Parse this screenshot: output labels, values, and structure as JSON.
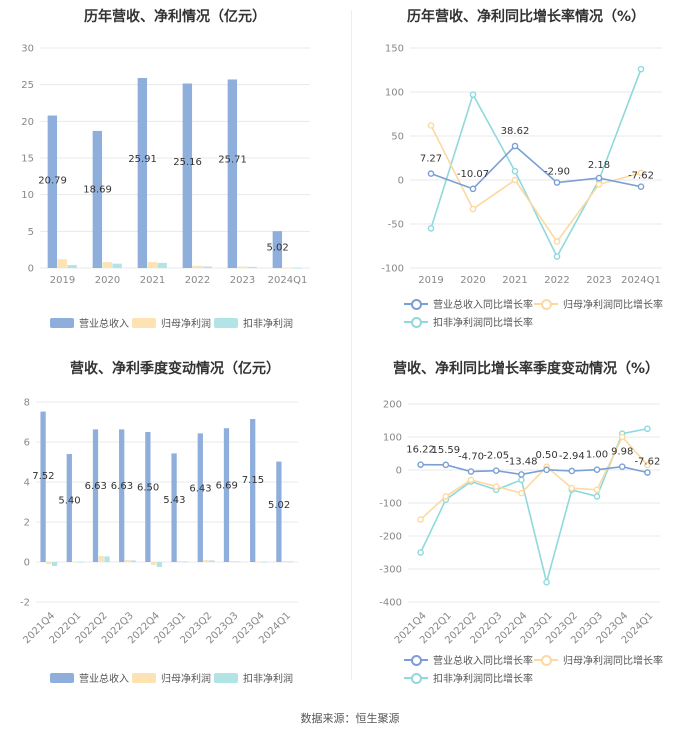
{
  "colors": {
    "revenue": "#8eaedb",
    "net_profit": "#fde2b3",
    "deducted_profit": "#b2e4e6",
    "rev_line": "#7b9fd4",
    "np_line": "#fcd9a0",
    "dp_line": "#8fd9dc",
    "grid": "#e8e8e8",
    "axis_text": "#888888"
  },
  "source_label": "数据来源：恒生聚源",
  "chart_data": [
    {
      "id": "annual-amount",
      "type": "bar",
      "title": "历年营收、净利情况（亿元）",
      "categories": [
        "2019",
        "2020",
        "2021",
        "2022",
        "2023",
        "2024Q1"
      ],
      "ylim": [
        0,
        30
      ],
      "yticks": [
        0,
        5,
        10,
        15,
        20,
        25,
        30
      ],
      "grid": true,
      "legend_position": "bottom",
      "series": [
        {
          "name": "营业总收入",
          "values": [
            20.79,
            18.69,
            25.91,
            25.16,
            25.71,
            5.02
          ],
          "labels": [
            "20.79",
            "18.69",
            "25.91",
            "25.16",
            "25.71",
            "5.02"
          ]
        },
        {
          "name": "归母净利润",
          "values": [
            1.2,
            0.8,
            0.8,
            0.3,
            0.2,
            0.05
          ]
        },
        {
          "name": "扣非净利润",
          "values": [
            0.4,
            0.6,
            0.7,
            0.2,
            0.15,
            0.03
          ]
        }
      ]
    },
    {
      "id": "annual-growth",
      "type": "line",
      "title": "历年营收、净利同比增长率情况（%）",
      "categories": [
        "2019",
        "2020",
        "2021",
        "2022",
        "2023",
        "2024Q1"
      ],
      "ylim": [
        -100,
        150
      ],
      "yticks": [
        -100,
        -50,
        0,
        50,
        100,
        150
      ],
      "grid": true,
      "legend_position": "bottom",
      "series": [
        {
          "name": "营业总收入同比增长率",
          "values": [
            7.27,
            -10.07,
            38.62,
            -2.9,
            2.18,
            -7.62
          ],
          "labels": [
            "7.27",
            "-10.07",
            "38.62",
            "-2.90",
            "2.18",
            "-7.62"
          ]
        },
        {
          "name": "归母净利润同比增长率",
          "values": [
            62,
            -33,
            0,
            -70,
            -5,
            8
          ]
        },
        {
          "name": "扣非净利润同比增长率",
          "values": [
            -55,
            97,
            10,
            -87,
            0,
            126
          ]
        }
      ]
    },
    {
      "id": "quarterly-amount",
      "type": "bar",
      "title": "营收、净利季度变动情况（亿元）",
      "categories": [
        "2021Q4",
        "2022Q1",
        "2022Q2",
        "2022Q3",
        "2022Q4",
        "2023Q1",
        "2023Q2",
        "2023Q3",
        "2023Q4",
        "2024Q1"
      ],
      "ylim": [
        -2,
        8
      ],
      "yticks": [
        -2,
        0,
        2,
        4,
        6,
        8
      ],
      "grid": true,
      "legend_position": "bottom",
      "series": [
        {
          "name": "营业总收入",
          "values": [
            7.52,
            5.4,
            6.63,
            6.63,
            6.5,
            5.43,
            6.43,
            6.69,
            7.15,
            5.02
          ],
          "labels": [
            "7.52",
            "5.40",
            "6.63",
            "6.63",
            "6.50",
            "5.43",
            "6.43",
            "6.69",
            "7.15",
            "5.02"
          ]
        },
        {
          "name": "归母净利润",
          "values": [
            -0.1,
            0.02,
            0.3,
            0.1,
            -0.15,
            0.05,
            0.1,
            0.05,
            0.02,
            0.05
          ]
        },
        {
          "name": "扣非净利润",
          "values": [
            -0.2,
            0.01,
            0.28,
            0.08,
            -0.25,
            0.03,
            0.08,
            0.03,
            0.01,
            0.03
          ]
        }
      ]
    },
    {
      "id": "quarterly-growth",
      "type": "line",
      "title": "营收、净利同比增长率季度变动情况（%）",
      "categories": [
        "2021Q4",
        "2022Q1",
        "2022Q2",
        "2022Q3",
        "2022Q4",
        "2023Q1",
        "2023Q2",
        "2023Q3",
        "2023Q4",
        "2024Q1"
      ],
      "ylim": [
        -400,
        200
      ],
      "yticks": [
        -400,
        -300,
        -200,
        -100,
        0,
        100,
        200
      ],
      "grid": true,
      "legend_position": "bottom",
      "series": [
        {
          "name": "营业总收入同比增长率",
          "values": [
            16.22,
            15.59,
            -4.7,
            -2.05,
            -13.48,
            0.5,
            -2.94,
            1.0,
            9.98,
            -7.62
          ],
          "labels": [
            "16.22",
            "15.59",
            "-4.70",
            "-2.05",
            "-13.48",
            "0.50",
            "-2.94",
            "1.00",
            "9.98",
            "-7.62"
          ]
        },
        {
          "name": "归母净利润同比增长率",
          "values": [
            -150,
            -80,
            -30,
            -50,
            -70,
            10,
            -55,
            -60,
            100,
            15
          ]
        },
        {
          "name": "扣非净利润同比增长率",
          "values": [
            -250,
            -90,
            -35,
            -60,
            -30,
            -340,
            -60,
            -80,
            110,
            125
          ]
        }
      ]
    }
  ]
}
